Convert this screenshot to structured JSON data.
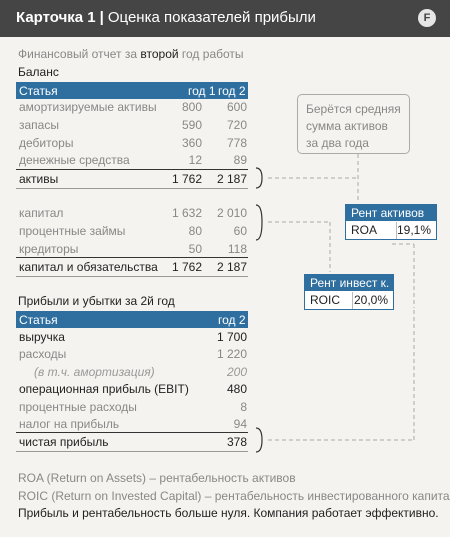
{
  "header": {
    "card_label": "Карточка 1",
    "separator": "|",
    "title": "Оценка показателей прибыли",
    "logo_letter": "F"
  },
  "subtitle": {
    "part1": "Финансовый отчет за ",
    "highlight": "второй",
    "part2": " год работы"
  },
  "balance": {
    "title": "Баланс",
    "columns": [
      "Статья",
      "год 1",
      "год 2"
    ],
    "rows": [
      {
        "label": "амортизируемые активы",
        "y1": "800",
        "y2": "600"
      },
      {
        "label": "запасы",
        "y1": "590",
        "y2": "720"
      },
      {
        "label": "дебиторы",
        "y1": "360",
        "y2": "778"
      },
      {
        "label": "денежные средства",
        "y1": "12",
        "y2": "89"
      },
      {
        "label": "активы",
        "y1": "1 762",
        "y2": "2 187"
      },
      {
        "label": "капитал",
        "y1": "1 632",
        "y2": "2 010"
      },
      {
        "label": "процентные займы",
        "y1": "80",
        "y2": "60"
      },
      {
        "label": "кредиторы",
        "y1": "50",
        "y2": "118"
      },
      {
        "label": "капитал и обязательства",
        "y1": "1 762",
        "y2": "2 187"
      }
    ]
  },
  "pnl": {
    "title": "Прибыли и убытки за 2й год",
    "columns": [
      "Статья",
      "год 2"
    ],
    "rows": [
      {
        "label": "выручка",
        "y2": "1 700"
      },
      {
        "label": "расходы",
        "y2": "1 220"
      },
      {
        "label": "(в т.ч. амортизация)",
        "y2": "200"
      },
      {
        "label": "операционная прибыль (EBIT)",
        "y2": "480"
      },
      {
        "label": "процентные расходы",
        "y2": "8"
      },
      {
        "label": "налог на прибыль",
        "y2": "94"
      },
      {
        "label": "чистая прибыль",
        "y2": "378"
      }
    ]
  },
  "note": {
    "lines": [
      "Берётся средняя",
      "сумма активов",
      "за два года"
    ]
  },
  "callouts": {
    "roa": {
      "title": "Рент активов",
      "key": "ROA",
      "value": "19,1%"
    },
    "roic": {
      "title": "Рент инвест к.",
      "key": "ROIC",
      "value": "20,0%"
    }
  },
  "footnotes": {
    "roa": "ROA (Return on Assets) – рентабельность активов",
    "roic": "ROIC (Return on Invested Capital) – рентабельность инвестированного капитала",
    "conclusion": "Прибыль и рентабельность больше нуля. Компания работает эффективно."
  },
  "colors": {
    "header_bg": "#454545",
    "accent": "#2f6fa0",
    "background": "#f4f3ef"
  }
}
